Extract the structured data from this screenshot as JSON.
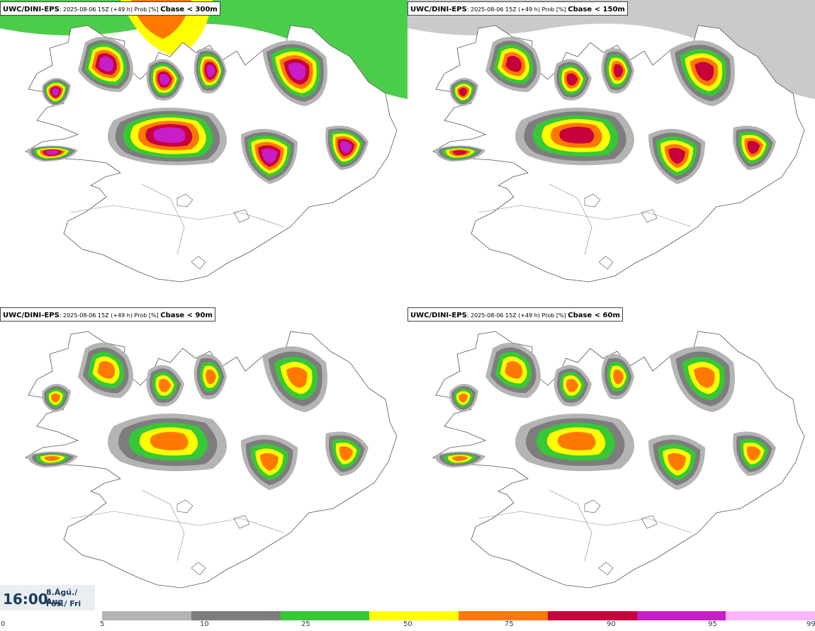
{
  "panels": [
    {
      "model": "UWC/DINI-EPS",
      "meta": ": 2025-08-06 15Z (+49 h) Prob [%] ",
      "field": "Cbase < 300m",
      "level": 4
    },
    {
      "model": "UWC/DINI-EPS",
      "meta": ": 2025-08-06 15Z (+49 h) Prob [%] ",
      "field": "Cbase < 150m",
      "level": 3
    },
    {
      "model": "UWC/DINI-EPS",
      "meta": ": 2025-08-06 15Z (+49 h) Prob [%] ",
      "field": "Cbase < 90m",
      "level": 2
    },
    {
      "model": "UWC/DINI-EPS",
      "meta": ": 2025-08-06 15Z (+49 h) Prob [%] ",
      "field": "Cbase < 60m",
      "level": 2
    }
  ],
  "timebox": {
    "time": "16:00",
    "date_line1": "8.Ágú./ Aug",
    "date_line2": "Fös./ Fri"
  },
  "colorbar": {
    "start_label": "0",
    "ticks": [
      "5",
      "10",
      "25",
      "50",
      "75",
      "90",
      "95",
      "99"
    ],
    "colors": [
      "#b4b4b4",
      "#7d7d7d",
      "#37c837",
      "#ffff00",
      "#ff7800",
      "#c8003c",
      "#c81ec8",
      "#ffb4ff"
    ]
  }
}
